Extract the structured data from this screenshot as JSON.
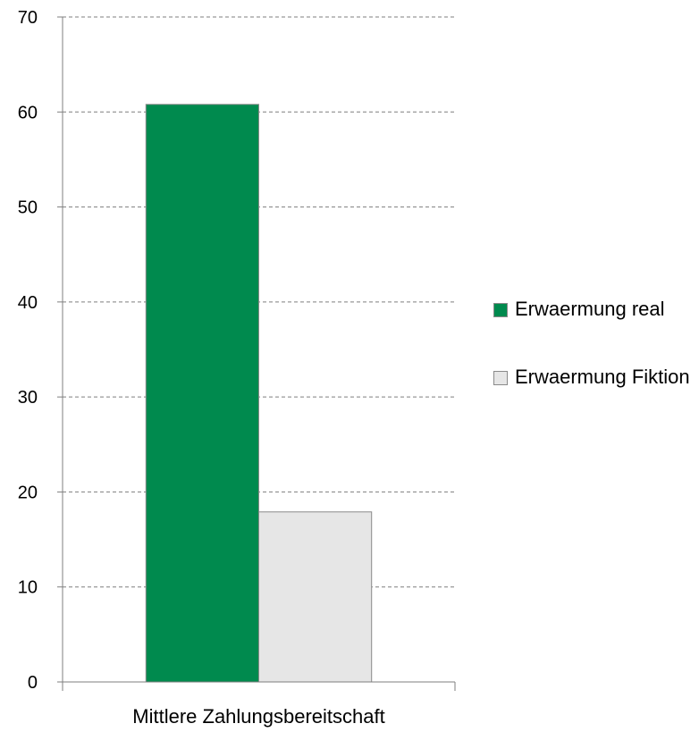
{
  "chart_data": {
    "type": "bar",
    "categories": [
      "Mittlere Zahlungsbereitschaft"
    ],
    "series": [
      {
        "name": "Erwaermung real",
        "values": [
          60.8
        ],
        "color": "#008a4e"
      },
      {
        "name": "Erwaermung Fiktion",
        "values": [
          17.9
        ],
        "color": "#e6e6e6"
      }
    ],
    "ylim": [
      0,
      70
    ],
    "yticks": [
      0,
      10,
      20,
      30,
      40,
      50,
      60,
      70
    ],
    "grid": "horizontal dashed",
    "legend_position": "right"
  }
}
